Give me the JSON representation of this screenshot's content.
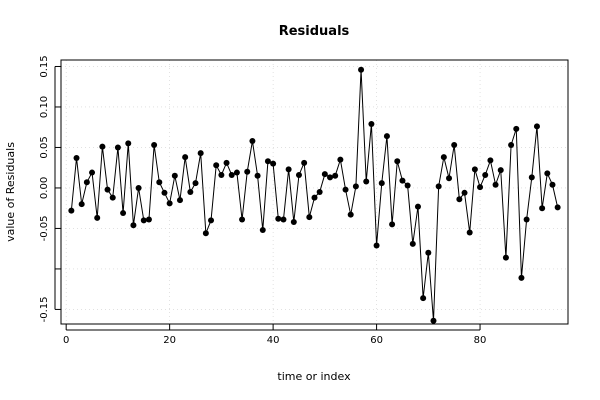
{
  "chart_data": {
    "type": "line",
    "title": "Residuals",
    "xlabel": "time or index",
    "ylabel": "value of Residuals",
    "xlim": [
      -1,
      97
    ],
    "ylim": [
      -0.168,
      0.158
    ],
    "xticks": [
      0,
      20,
      40,
      60,
      80
    ],
    "yticks": [
      -0.15,
      -0.1,
      -0.05,
      0.0,
      0.05,
      0.1,
      0.15
    ],
    "ytick_labels": [
      "-0.15",
      "",
      "-0.05",
      "0.00",
      "0.05",
      "0.10",
      "0.15"
    ],
    "grid": true,
    "series": [
      {
        "x": [
          1,
          2,
          3,
          4,
          5,
          6,
          7,
          8,
          9,
          10,
          11,
          12,
          13,
          14,
          15,
          16,
          17,
          18,
          19,
          20,
          21,
          22,
          23,
          24,
          25,
          26,
          27,
          28,
          29,
          30,
          31,
          32,
          33,
          34,
          35,
          36,
          37,
          38,
          39,
          40,
          41,
          42,
          43,
          44,
          45,
          46,
          47,
          48,
          49,
          50,
          51,
          52,
          53,
          54,
          55,
          56,
          57,
          58,
          59,
          60,
          61,
          62,
          63,
          64,
          65,
          66,
          67,
          68,
          69,
          70,
          71,
          72,
          73,
          74,
          75,
          76,
          77,
          78,
          79,
          80,
          81,
          82,
          83,
          84,
          85,
          86,
          87,
          88,
          89,
          90,
          91,
          92,
          93,
          94,
          95
        ],
        "values": [
          -0.028,
          0.037,
          -0.02,
          0.007,
          0.019,
          -0.037,
          0.051,
          -0.002,
          -0.012,
          0.05,
          -0.031,
          0.055,
          -0.046,
          0.0,
          -0.04,
          -0.039,
          0.053,
          0.007,
          -0.006,
          -0.019,
          0.015,
          -0.015,
          0.038,
          -0.005,
          0.006,
          0.043,
          -0.056,
          -0.04,
          0.028,
          0.016,
          0.031,
          0.016,
          0.019,
          -0.039,
          0.02,
          0.058,
          0.015,
          -0.052,
          0.033,
          0.03,
          -0.038,
          -0.039,
          0.023,
          -0.042,
          0.016,
          0.031,
          -0.036,
          -0.012,
          -0.005,
          0.017,
          0.013,
          0.015,
          0.035,
          -0.002,
          -0.033,
          0.002,
          0.146,
          0.008,
          0.079,
          -0.071,
          0.006,
          0.064,
          -0.045,
          0.033,
          0.009,
          0.003,
          -0.069,
          -0.023,
          -0.136,
          -0.08,
          -0.164,
          0.002,
          0.038,
          0.012,
          0.053,
          -0.014,
          -0.006,
          -0.055,
          0.023,
          0.001,
          0.016,
          0.034,
          0.004,
          0.022,
          -0.086,
          0.053,
          0.073,
          -0.111,
          -0.039,
          0.013,
          0.076,
          -0.025,
          0.018,
          0.004,
          -0.024
        ]
      }
    ]
  }
}
